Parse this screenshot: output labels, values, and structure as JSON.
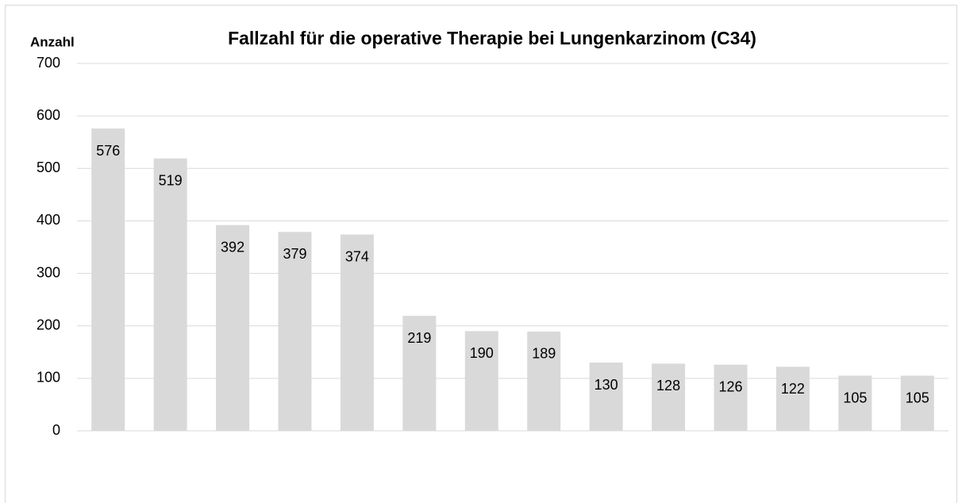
{
  "chart_data": {
    "type": "bar",
    "title": "Fallzahl für die operative Therapie bei Lungenkarzinom (C34)",
    "y_label": "Anzahl",
    "categories": [
      null,
      null,
      null,
      null,
      null,
      null,
      null,
      null,
      null,
      null,
      null,
      null,
      null,
      null
    ],
    "values": [
      576,
      519,
      392,
      379,
      374,
      219,
      190,
      189,
      130,
      128,
      126,
      122,
      105,
      105
    ],
    "color": "#d9d9d9",
    "ylim": [
      0,
      700
    ],
    "yticks": [
      0,
      100,
      200,
      300,
      400,
      500,
      600,
      700
    ],
    "grid": true
  }
}
